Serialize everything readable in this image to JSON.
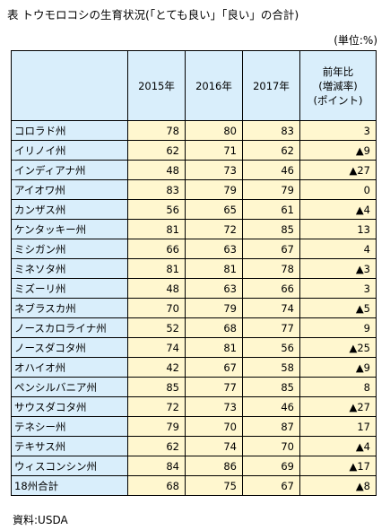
{
  "title": "表 トウモロコシの生育状況(「とても良い」「良い」の合計)",
  "unit": "(単位:%)",
  "headers": {
    "y2015": "2015年",
    "y2016": "2016年",
    "y2017": "2017年",
    "change_line1": "前年比",
    "change_line2": "(増減率)",
    "change_line3": "(ポイント)"
  },
  "rows": [
    {
      "state": "コロラド州",
      "y2015": "78",
      "y2016": "80",
      "y2017": "83",
      "change": "3"
    },
    {
      "state": "イリノイ州",
      "y2015": "62",
      "y2016": "71",
      "y2017": "62",
      "change": "▲9"
    },
    {
      "state": "インディアナ州",
      "y2015": "48",
      "y2016": "73",
      "y2017": "46",
      "change": "▲27"
    },
    {
      "state": "アイオワ州",
      "y2015": "83",
      "y2016": "79",
      "y2017": "79",
      "change": "0"
    },
    {
      "state": "カンザス州",
      "y2015": "56",
      "y2016": "65",
      "y2017": "61",
      "change": "▲4"
    },
    {
      "state": "ケンタッキー州",
      "y2015": "81",
      "y2016": "72",
      "y2017": "85",
      "change": "13"
    },
    {
      "state": "ミシガン州",
      "y2015": "66",
      "y2016": "63",
      "y2017": "67",
      "change": "4"
    },
    {
      "state": "ミネソタ州",
      "y2015": "81",
      "y2016": "81",
      "y2017": "78",
      "change": "▲3"
    },
    {
      "state": "ミズーリ州",
      "y2015": "48",
      "y2016": "63",
      "y2017": "66",
      "change": "3"
    },
    {
      "state": "ネブラスカ州",
      "y2015": "70",
      "y2016": "79",
      "y2017": "74",
      "change": "▲5"
    },
    {
      "state": "ノースカロライナ州",
      "y2015": "52",
      "y2016": "68",
      "y2017": "77",
      "change": "9"
    },
    {
      "state": "ノースダコタ州",
      "y2015": "74",
      "y2016": "81",
      "y2017": "56",
      "change": "▲25"
    },
    {
      "state": "オハイオ州",
      "y2015": "42",
      "y2016": "67",
      "y2017": "58",
      "change": "▲9"
    },
    {
      "state": "ペンシルバニア州",
      "y2015": "85",
      "y2016": "77",
      "y2017": "85",
      "change": "8"
    },
    {
      "state": "サウスダコタ州",
      "y2015": "72",
      "y2016": "73",
      "y2017": "46",
      "change": "▲27"
    },
    {
      "state": "テネシー州",
      "y2015": "79",
      "y2016": "70",
      "y2017": "87",
      "change": "17"
    },
    {
      "state": "テキサス州",
      "y2015": "62",
      "y2016": "74",
      "y2017": "70",
      "change": "▲4"
    },
    {
      "state": "ウィスコンシン州",
      "y2015": "84",
      "y2016": "86",
      "y2017": "69",
      "change": "▲17"
    },
    {
      "state": "18州合計",
      "y2015": "68",
      "y2016": "75",
      "y2017": "67",
      "change": "▲8"
    }
  ],
  "source": "資料:USDA",
  "colors": {
    "header_bg": "#d9eefb",
    "state_bg": "#d9eefb",
    "value_bg": "#fff7cf",
    "border": "#000000"
  }
}
